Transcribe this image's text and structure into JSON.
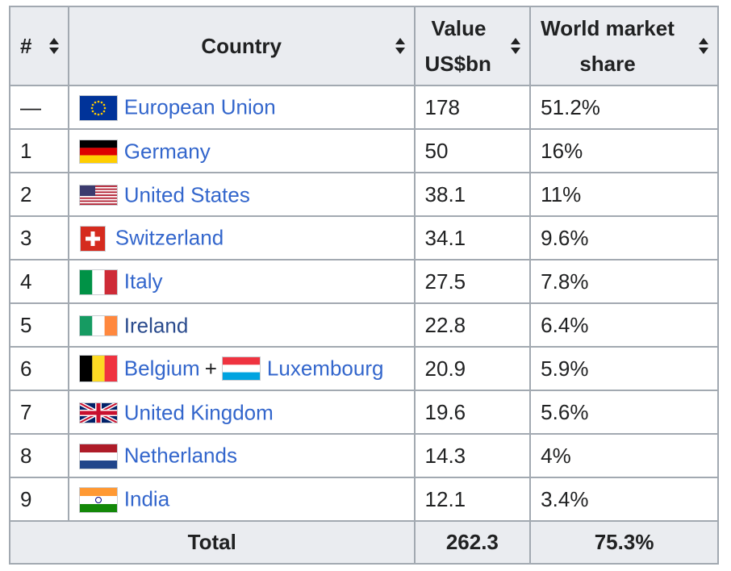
{
  "table": {
    "headers": {
      "rank": "#",
      "country": "Country",
      "value_line1": "Value",
      "value_line2": "US$bn",
      "share_line1": "World market",
      "share_line2": "share"
    },
    "rows": [
      {
        "rank": "—",
        "country": "European Union",
        "value": "178",
        "share": "51.2%",
        "flag": "eu"
      },
      {
        "rank": "1",
        "country": "Germany",
        "value": "50",
        "share": "16%",
        "flag": "de"
      },
      {
        "rank": "2",
        "country": "United States",
        "value": "38.1",
        "share": "11%",
        "flag": "us"
      },
      {
        "rank": "3",
        "country": "Switzerland",
        "value": "34.1",
        "share": "9.6%",
        "flag": "ch"
      },
      {
        "rank": "4",
        "country": "Italy",
        "value": "27.5",
        "share": "7.8%",
        "flag": "it"
      },
      {
        "rank": "5",
        "country": "Ireland",
        "value": "22.8",
        "share": "6.4%",
        "flag": "ie"
      },
      {
        "rank": "6",
        "country": "Belgium",
        "country_plus": "+",
        "country2": "Luxembourg",
        "value": "20.9",
        "share": "5.9%",
        "flag": "be",
        "flag2": "lu"
      },
      {
        "rank": "7",
        "country": "United Kingdom",
        "value": "19.6",
        "share": "5.6%",
        "flag": "gb"
      },
      {
        "rank": "8",
        "country": "Netherlands",
        "value": "14.3",
        "share": "4%",
        "flag": "nl"
      },
      {
        "rank": "9",
        "country": "India",
        "value": "12.1",
        "share": "3.4%",
        "flag": "in"
      }
    ],
    "footer": {
      "label": "Total",
      "value": "262.3",
      "share": "75.3%"
    }
  },
  "colors": {
    "link": "#3366cc",
    "link_visited": "#2a4b8d",
    "header_bg": "#eaecf0",
    "border": "#a2a9b1",
    "text": "#202122"
  },
  "icons": {
    "sort": "sort-arrows-icon"
  }
}
